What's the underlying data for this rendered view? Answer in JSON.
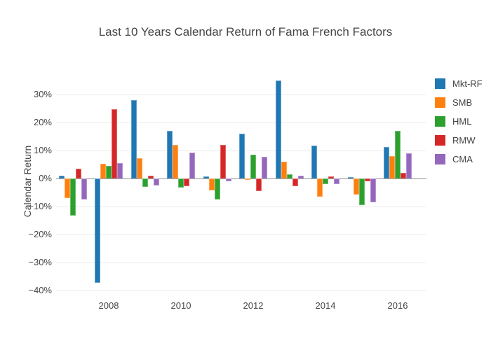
{
  "chart_data": {
    "type": "bar",
    "title": "Last 10 Years Calendar Return of Fama French Factors",
    "xlabel": "",
    "ylabel": "Calendar Return",
    "categories": [
      2007,
      2008,
      2009,
      2010,
      2011,
      2012,
      2013,
      2014,
      2015,
      2016
    ],
    "series": [
      {
        "name": "Mkt-RF",
        "color": "#1f77b4",
        "values": [
          1.1,
          -37.3,
          27.9,
          17.1,
          0.7,
          16.1,
          35.0,
          11.7,
          0.4,
          11.3
        ]
      },
      {
        "name": "SMB",
        "color": "#ff7f0e",
        "values": [
          -7.0,
          5.2,
          7.3,
          12.1,
          -4.2,
          -0.5,
          6.0,
          -6.6,
          -5.7,
          7.9
        ]
      },
      {
        "name": "HML",
        "color": "#2ca02c",
        "values": [
          -13.3,
          4.6,
          -3.0,
          -3.2,
          -7.5,
          8.5,
          1.4,
          -2.1,
          -9.6,
          17.0
        ]
      },
      {
        "name": "RMW",
        "color": "#d62728",
        "values": [
          3.6,
          24.8,
          1.0,
          -2.7,
          11.9,
          -4.6,
          -2.7,
          0.7,
          -1.1,
          2.1
        ]
      },
      {
        "name": "CMA",
        "color": "#9467bd",
        "values": [
          -7.5,
          5.6,
          -2.6,
          9.2,
          -0.9,
          7.8,
          0.9,
          -1.9,
          -8.6,
          8.9
        ]
      }
    ],
    "yticks": [
      {
        "value": 30,
        "label": "30%"
      },
      {
        "value": 20,
        "label": "20%"
      },
      {
        "value": 10,
        "label": "10%"
      },
      {
        "value": 0,
        "label": "0%"
      },
      {
        "value": -10,
        "label": "−10%"
      },
      {
        "value": -20,
        "label": "−20%"
      },
      {
        "value": -30,
        "label": "−30%"
      },
      {
        "value": -40,
        "label": "−40%"
      }
    ],
    "xticks": [
      {
        "value": 2008,
        "label": "2008"
      },
      {
        "value": 2010,
        "label": "2010"
      },
      {
        "value": 2012,
        "label": "2012"
      },
      {
        "value": 2014,
        "label": "2014"
      },
      {
        "value": 2016,
        "label": "2016"
      }
    ],
    "ylim": [
      -42,
      40
    ],
    "grid": true,
    "legend_position": "right",
    "colors": {
      "text": "#444444",
      "grid": "#ececec",
      "zeroline": "#8f8f8f",
      "background": "#ffffff"
    }
  }
}
